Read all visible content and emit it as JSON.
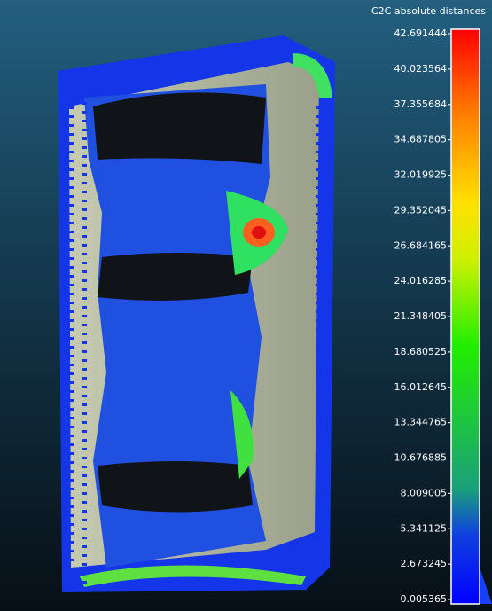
{
  "scale": {
    "title": "C2C absolute distances",
    "ticks": [
      "42.691444",
      "40.023564",
      "37.355684",
      "34.687805",
      "32.019925",
      "29.352045",
      "26.684165",
      "24.016285",
      "21.348405",
      "18.680525",
      "16.012645",
      "13.344765",
      "10.676885",
      "8.009005",
      "5.341125",
      "2.673245",
      "0.005365"
    ]
  }
}
